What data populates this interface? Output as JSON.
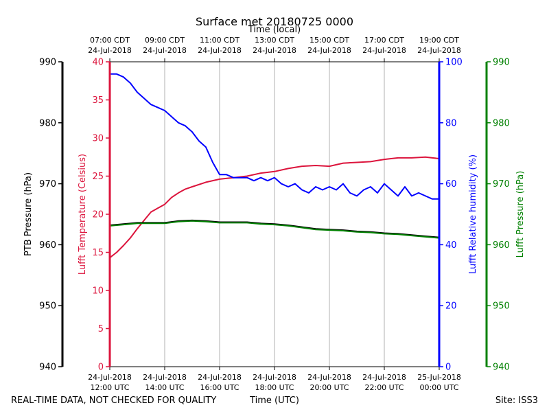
{
  "chart_data": {
    "type": "line",
    "title": "Surface met 20180725 0000",
    "top_axis_label": "Time (local)",
    "xlabel": "Time (UTC)",
    "footer_left": "REAL-TIME DATA, NOT CHECKED FOR QUALITY",
    "footer_right": "Site: ISS3",
    "x_ticks_utc": [
      {
        "hours": 0,
        "date": "24-Jul-2018",
        "time": "12:00 UTC"
      },
      {
        "hours": 2,
        "date": "24-Jul-2018",
        "time": "14:00 UTC"
      },
      {
        "hours": 4,
        "date": "24-Jul-2018",
        "time": "16:00 UTC"
      },
      {
        "hours": 6,
        "date": "24-Jul-2018",
        "time": "18:00 UTC"
      },
      {
        "hours": 8,
        "date": "24-Jul-2018",
        "time": "20:00 UTC"
      },
      {
        "hours": 10,
        "date": "24-Jul-2018",
        "time": "22:00 UTC"
      },
      {
        "hours": 12,
        "date": "25-Jul-2018",
        "time": "00:00 UTC"
      }
    ],
    "x_ticks_local": [
      {
        "hours": 0,
        "time": "07:00 CDT",
        "date": "24-Jul-2018"
      },
      {
        "hours": 2,
        "time": "09:00 CDT",
        "date": "24-Jul-2018"
      },
      {
        "hours": 4,
        "time": "11:00 CDT",
        "date": "24-Jul-2018"
      },
      {
        "hours": 6,
        "time": "13:00 CDT",
        "date": "24-Jul-2018"
      },
      {
        "hours": 8,
        "time": "15:00 CDT",
        "date": "24-Jul-2018"
      },
      {
        "hours": 10,
        "time": "17:00 CDT",
        "date": "24-Jul-2018"
      },
      {
        "hours": 12,
        "time": "19:00 CDT",
        "date": "24-Jul-2018"
      }
    ],
    "xlim_hours": [
      0,
      12
    ],
    "grid": "vertical",
    "axes": {
      "ptb": {
        "label": "PTB Pressure (hPa)",
        "color": "#000000",
        "lim": [
          940,
          990
        ],
        "ticks": [
          940,
          950,
          960,
          970,
          980,
          990
        ]
      },
      "temp": {
        "label": "Lufft Temperature (Celsius)",
        "color": "#dc143c",
        "lim": [
          0,
          40
        ],
        "ticks": [
          0,
          5,
          10,
          15,
          20,
          25,
          30,
          35,
          40
        ]
      },
      "rh": {
        "label": "Lufft Relative humidity (%)",
        "color": "#0000ff",
        "lim": [
          0,
          100
        ],
        "ticks": [
          0,
          20,
          40,
          60,
          80,
          100
        ]
      },
      "lp": {
        "label": "Lufft Pressure (hPa)",
        "color": "#008000",
        "lim": [
          940,
          990
        ],
        "ticks": [
          940,
          950,
          960,
          970,
          980,
          990
        ]
      }
    },
    "series": [
      {
        "name": "Lufft Temperature",
        "axis": "temp",
        "color": "#dc143c",
        "x": [
          0,
          0.25,
          0.5,
          0.75,
          1,
          1.25,
          1.5,
          1.75,
          2,
          2.25,
          2.5,
          2.75,
          3,
          3.5,
          4,
          4.5,
          5,
          5.5,
          6,
          6.5,
          7,
          7.5,
          8,
          8.5,
          9,
          9.5,
          10,
          10.5,
          11,
          11.5,
          12
        ],
        "values": [
          14.3,
          15.0,
          15.9,
          16.9,
          18.1,
          19.2,
          20.3,
          20.8,
          21.3,
          22.2,
          22.8,
          23.3,
          23.6,
          24.2,
          24.6,
          24.8,
          25.0,
          25.4,
          25.6,
          26.0,
          26.3,
          26.4,
          26.3,
          26.7,
          26.8,
          26.9,
          27.2,
          27.4,
          27.4,
          27.5,
          27.3
        ]
      },
      {
        "name": "Lufft Relative humidity",
        "axis": "rh",
        "color": "#0000ff",
        "x": [
          0,
          0.25,
          0.5,
          0.75,
          1,
          1.25,
          1.5,
          1.75,
          2,
          2.25,
          2.5,
          2.75,
          3,
          3.25,
          3.5,
          3.75,
          4,
          4.25,
          4.5,
          4.75,
          5,
          5.25,
          5.5,
          5.75,
          6,
          6.25,
          6.5,
          6.75,
          7,
          7.25,
          7.5,
          7.75,
          8,
          8.25,
          8.5,
          8.75,
          9,
          9.25,
          9.5,
          9.75,
          10,
          10.25,
          10.5,
          10.75,
          11,
          11.25,
          11.5,
          11.75,
          12
        ],
        "values": [
          96,
          96,
          95,
          93,
          90,
          88,
          86,
          85,
          84,
          82,
          80,
          79,
          77,
          74,
          72,
          67,
          63,
          63,
          62,
          62,
          62,
          61,
          62,
          61,
          62,
          60,
          59,
          60,
          58,
          57,
          59,
          58,
          59,
          58,
          60,
          57,
          56,
          58,
          59,
          57,
          60,
          58,
          56,
          59,
          56,
          57,
          56,
          55,
          55
        ]
      },
      {
        "name": "PTB Pressure",
        "axis": "ptb",
        "color": "#000000",
        "x": [
          0,
          0.5,
          1,
          1.5,
          2,
          2.5,
          3,
          3.5,
          4,
          4.5,
          5,
          5.5,
          6,
          6.5,
          7,
          7.5,
          8,
          8.5,
          9,
          9.5,
          10,
          10.5,
          11,
          11.5,
          12
        ],
        "values": [
          963.2,
          963.4,
          963.6,
          963.6,
          963.6,
          963.9,
          964.0,
          963.9,
          963.7,
          963.7,
          963.7,
          963.5,
          963.4,
          963.2,
          962.9,
          962.6,
          962.5,
          962.4,
          962.2,
          962.1,
          961.9,
          961.8,
          961.6,
          961.4,
          961.2
        ]
      },
      {
        "name": "Lufft Pressure",
        "axis": "lp",
        "color": "#008000",
        "x": [
          0,
          0.5,
          1,
          1.5,
          2,
          2.5,
          3,
          3.5,
          4,
          4.5,
          5,
          5.5,
          6,
          6.5,
          7,
          7.5,
          8,
          8.5,
          9,
          9.5,
          10,
          10.5,
          11,
          11.5,
          12
        ],
        "values": [
          963.1,
          963.3,
          963.5,
          963.5,
          963.5,
          963.8,
          963.9,
          963.8,
          963.6,
          963.6,
          963.6,
          963.4,
          963.3,
          963.1,
          962.8,
          962.5,
          962.4,
          962.3,
          962.1,
          962.0,
          961.8,
          961.7,
          961.5,
          961.3,
          961.1
        ]
      }
    ]
  }
}
